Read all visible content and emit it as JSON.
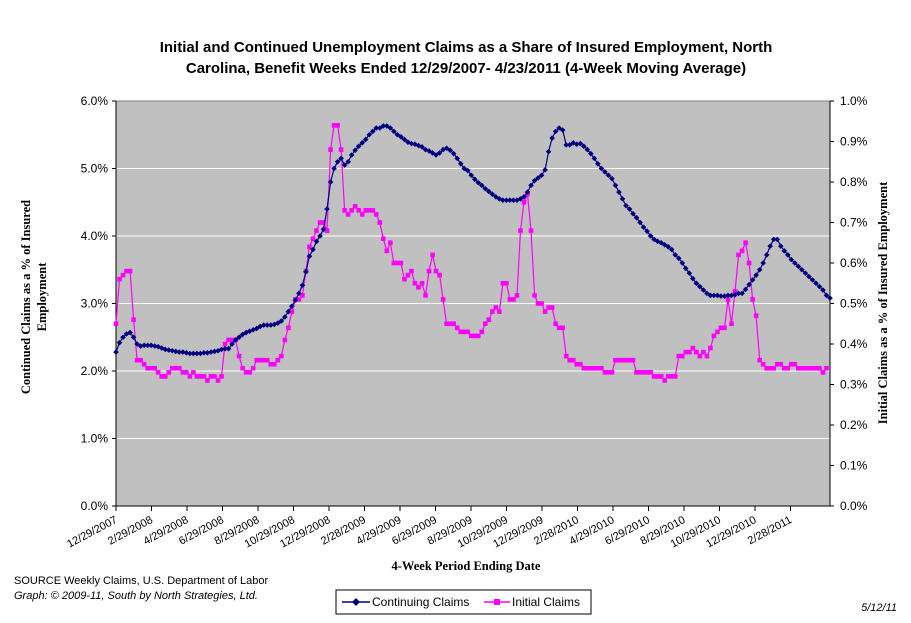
{
  "chart_data": {
    "type": "line",
    "title_line1": "Initial and Continued Unemployment Claims as a Share of Insured Employment, North",
    "title_line2": "Carolina, Benefit Weeks Ended 12/29/2007- 4/23/2011 (4-Week Moving Average)",
    "xlabel": "4-Week Period Ending Date",
    "ylabel_left_line1": "Continued Claims as a % of Insured",
    "ylabel_left_line2": "Employment",
    "ylabel_right": "Initial Claims as a % of Insured Employment",
    "x_tick_labels": [
      "12/29/2007",
      "2/29/2008",
      "4/29/2008",
      "6/29/2008",
      "8/29/2008",
      "10/29/2008",
      "12/29/2008",
      "2/28/2009",
      "4/29/2009",
      "6/29/2009",
      "8/29/2009",
      "10/29/2009",
      "12/29/2009",
      "2/28/2010",
      "4/29/2010",
      "6/29/2010",
      "8/29/2010",
      "10/29/2010",
      "12/29/2010",
      "2/28/2011"
    ],
    "y_left_ticks": [
      "0.0%",
      "1.0%",
      "2.0%",
      "3.0%",
      "4.0%",
      "5.0%",
      "6.0%"
    ],
    "y_right_ticks": [
      "0.0%",
      "0.1%",
      "0.2%",
      "0.3%",
      "0.4%",
      "0.5%",
      "0.6%",
      "0.7%",
      "0.8%",
      "0.9%",
      "1.0%"
    ],
    "y_left_range": [
      0,
      6
    ],
    "y_right_range": [
      0,
      1
    ],
    "grid": true,
    "legend_position": "bottom-center",
    "colors": {
      "plot_background": "#c0c0c0",
      "continuing": "#000080",
      "initial": "#ff00ff",
      "grid": "#ffffff"
    },
    "series": [
      {
        "name": "Continuing Claims",
        "axis": "left",
        "marker": "diamond",
        "values": [
          2.28,
          2.42,
          2.5,
          2.55,
          2.57,
          2.5,
          2.4,
          2.37,
          2.38,
          2.38,
          2.38,
          2.37,
          2.36,
          2.34,
          2.32,
          2.31,
          2.3,
          2.29,
          2.28,
          2.28,
          2.27,
          2.26,
          2.26,
          2.26,
          2.26,
          2.27,
          2.27,
          2.28,
          2.29,
          2.3,
          2.32,
          2.33,
          2.33,
          2.4,
          2.46,
          2.5,
          2.54,
          2.57,
          2.59,
          2.61,
          2.63,
          2.66,
          2.68,
          2.68,
          2.68,
          2.69,
          2.71,
          2.74,
          2.8,
          2.88,
          2.96,
          3.05,
          3.15,
          3.27,
          3.47,
          3.7,
          3.8,
          3.92,
          4.0,
          4.1,
          4.4,
          4.8,
          5.0,
          5.1,
          5.15,
          5.05,
          5.1,
          5.2,
          5.27,
          5.33,
          5.38,
          5.43,
          5.5,
          5.55,
          5.6,
          5.6,
          5.63,
          5.63,
          5.6,
          5.55,
          5.5,
          5.47,
          5.43,
          5.39,
          5.37,
          5.36,
          5.34,
          5.32,
          5.28,
          5.26,
          5.23,
          5.2,
          5.23,
          5.28,
          5.3,
          5.27,
          5.22,
          5.15,
          5.07,
          5.0,
          4.97,
          4.9,
          4.84,
          4.79,
          4.75,
          4.7,
          4.66,
          4.62,
          4.58,
          4.55,
          4.53,
          4.53,
          4.53,
          4.53,
          4.53,
          4.55,
          4.58,
          4.65,
          4.75,
          4.82,
          4.86,
          4.9,
          4.98,
          5.25,
          5.45,
          5.55,
          5.6,
          5.57,
          5.35,
          5.35,
          5.38,
          5.36,
          5.37,
          5.33,
          5.28,
          5.22,
          5.15,
          5.07,
          5.0,
          4.95,
          4.9,
          4.85,
          4.75,
          4.65,
          4.55,
          4.45,
          4.4,
          4.33,
          4.27,
          4.2,
          4.13,
          4.07,
          4.0,
          3.95,
          3.92,
          3.9,
          3.87,
          3.84,
          3.8,
          3.72,
          3.67,
          3.6,
          3.52,
          3.45,
          3.37,
          3.3,
          3.25,
          3.2,
          3.15,
          3.12,
          3.12,
          3.12,
          3.11,
          3.11,
          3.12,
          3.12,
          3.13,
          3.15,
          3.15,
          3.21,
          3.28,
          3.35,
          3.42,
          3.5,
          3.6,
          3.72,
          3.85,
          3.95,
          3.95,
          3.85,
          3.78,
          3.72,
          3.65,
          3.6,
          3.55,
          3.5,
          3.45,
          3.4,
          3.35,
          3.3,
          3.25,
          3.2,
          3.12,
          3.08
        ]
      },
      {
        "name": "Initial Claims",
        "axis": "right",
        "marker": "square",
        "values": [
          0.45,
          0.56,
          0.57,
          0.58,
          0.58,
          0.46,
          0.36,
          0.36,
          0.35,
          0.34,
          0.34,
          0.34,
          0.33,
          0.32,
          0.32,
          0.33,
          0.34,
          0.34,
          0.34,
          0.33,
          0.33,
          0.32,
          0.33,
          0.32,
          0.32,
          0.32,
          0.31,
          0.32,
          0.32,
          0.31,
          0.32,
          0.4,
          0.41,
          0.41,
          0.41,
          0.37,
          0.34,
          0.33,
          0.33,
          0.34,
          0.36,
          0.36,
          0.36,
          0.36,
          0.35,
          0.35,
          0.36,
          0.37,
          0.41,
          0.44,
          0.48,
          0.51,
          0.51,
          0.52,
          0.58,
          0.64,
          0.66,
          0.68,
          0.7,
          0.7,
          0.68,
          0.88,
          0.94,
          0.94,
          0.88,
          0.73,
          0.72,
          0.73,
          0.74,
          0.73,
          0.72,
          0.73,
          0.73,
          0.73,
          0.72,
          0.7,
          0.66,
          0.63,
          0.65,
          0.6,
          0.6,
          0.6,
          0.56,
          0.57,
          0.58,
          0.55,
          0.54,
          0.55,
          0.52,
          0.58,
          0.62,
          0.58,
          0.57,
          0.51,
          0.45,
          0.45,
          0.45,
          0.44,
          0.43,
          0.43,
          0.43,
          0.42,
          0.42,
          0.42,
          0.43,
          0.45,
          0.46,
          0.48,
          0.49,
          0.48,
          0.55,
          0.55,
          0.51,
          0.51,
          0.52,
          0.68,
          0.75,
          0.77,
          0.68,
          0.52,
          0.5,
          0.5,
          0.48,
          0.49,
          0.49,
          0.45,
          0.44,
          0.44,
          0.37,
          0.36,
          0.36,
          0.35,
          0.35,
          0.34,
          0.34,
          0.34,
          0.34,
          0.34,
          0.34,
          0.33,
          0.33,
          0.33,
          0.36,
          0.36,
          0.36,
          0.36,
          0.36,
          0.36,
          0.33,
          0.33,
          0.33,
          0.33,
          0.33,
          0.32,
          0.32,
          0.32,
          0.31,
          0.32,
          0.32,
          0.32,
          0.37,
          0.37,
          0.38,
          0.38,
          0.39,
          0.38,
          0.37,
          0.38,
          0.37,
          0.39,
          0.42,
          0.43,
          0.44,
          0.44,
          0.51,
          0.45,
          0.53,
          0.62,
          0.63,
          0.65,
          0.6,
          0.51,
          0.47,
          0.36,
          0.35,
          0.34,
          0.34,
          0.34,
          0.35,
          0.35,
          0.34,
          0.34,
          0.35,
          0.35,
          0.34,
          0.34,
          0.34,
          0.34,
          0.34,
          0.34,
          0.34,
          0.33,
          0.34
        ]
      }
    ]
  },
  "footer": {
    "source": "SOURCE   Weekly Claims, U.S. Department of Labor",
    "credit": "Graph: © 2009-11, South by North Strategies, Ltd.",
    "date": "5/12/11"
  }
}
